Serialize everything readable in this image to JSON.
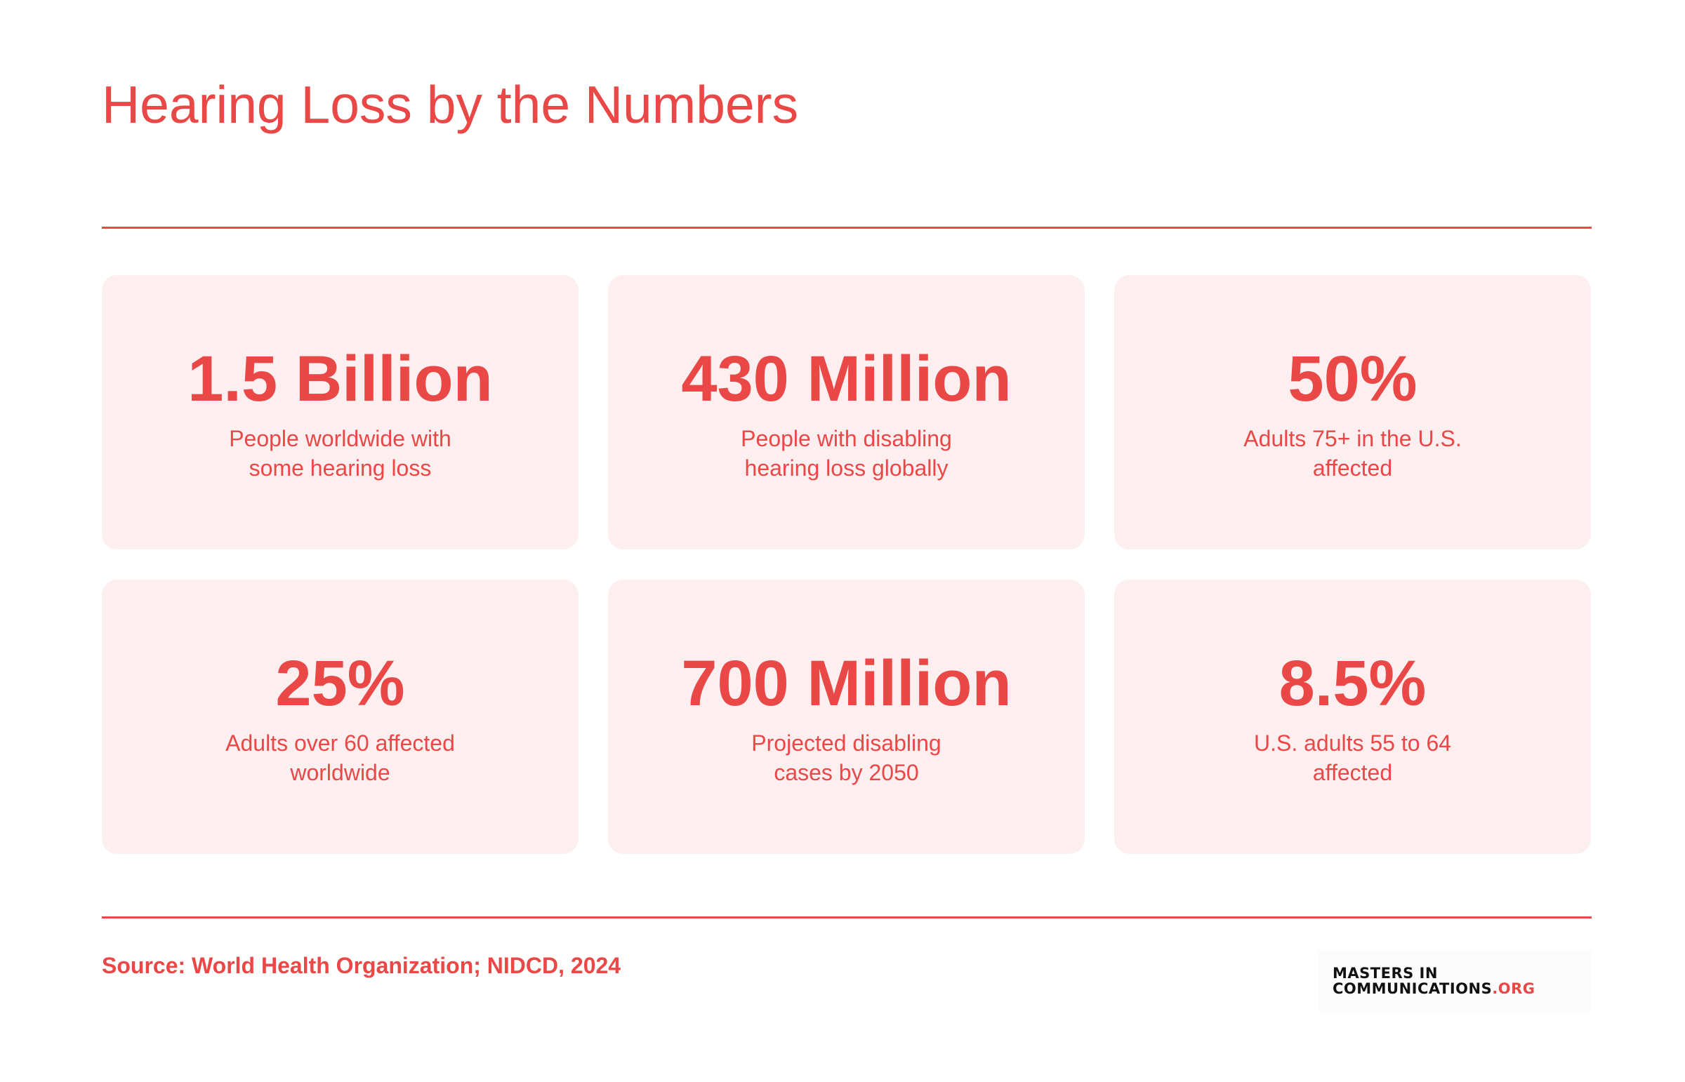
{
  "header": {
    "title": "Hearing Loss by the Numbers"
  },
  "stats": [
    {
      "value": "1.5 Billion",
      "description": "People worldwide with some hearing loss"
    },
    {
      "value": "430 Million",
      "description": "People with disabling hearing loss globally"
    },
    {
      "value": "50%",
      "description": "Adults 75+ in the U.S. affected"
    },
    {
      "value": "25%",
      "description": "Adults over 60 affected worldwide"
    },
    {
      "value": "700 Million",
      "description": "Projected disabling cases by 2050"
    },
    {
      "value": "8.5%",
      "description": "U.S. adults 55 to 64 affected"
    }
  ],
  "footer": {
    "source": "Source: World Health Organization; NIDCD, 2024",
    "logo_line1": "MASTERS IN",
    "logo_line2": "COMMUNICATIONS",
    "logo_suffix": ".ORG"
  },
  "colors": {
    "accent": "#ea4747",
    "card_background": "#fdeeef",
    "logo_text": "#111111"
  }
}
